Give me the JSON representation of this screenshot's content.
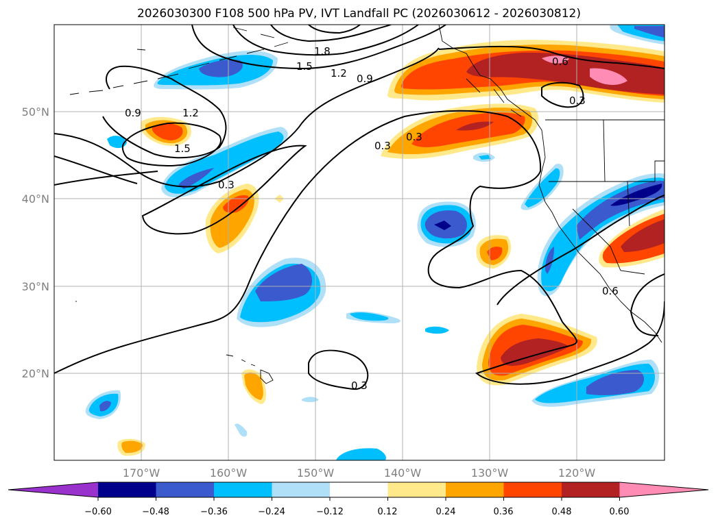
{
  "title": "2026030300 F108 500 hPa PV, IVT Landfall PC (2026030612 - 2026030812)",
  "map": {
    "lon_range": [
      -180,
      -110
    ],
    "lat_range": [
      10,
      60
    ],
    "lat_ticks": [
      "20°N",
      "30°N",
      "40°N",
      "50°N"
    ],
    "lon_ticks": [
      "170°W",
      "160°W",
      "150°W",
      "140°W",
      "130°W",
      "120°W"
    ],
    "grid": true
  },
  "colorbar": {
    "extend": "both",
    "colors": [
      "#9932cc",
      "#00008b",
      "#3a5acd",
      "#00bfff",
      "#b0e0f8",
      "#ffffff",
      "#ffe98a",
      "#ffa500",
      "#ff4500",
      "#b22222",
      "#ff8cb4"
    ],
    "tick_labels": [
      "−0.60",
      "−0.48",
      "−0.36",
      "−0.24",
      "−0.12",
      "0.12",
      "0.24",
      "0.36",
      "0.48",
      "0.60"
    ]
  },
  "pv_contour_labels": [
    "1.8",
    "1.5",
    "1.2",
    "0.9",
    "0.6",
    "0.3",
    "0.9",
    "1.2",
    "1.5",
    "0.3",
    "0.3",
    "0.3",
    "0.6",
    "0.3"
  ]
}
